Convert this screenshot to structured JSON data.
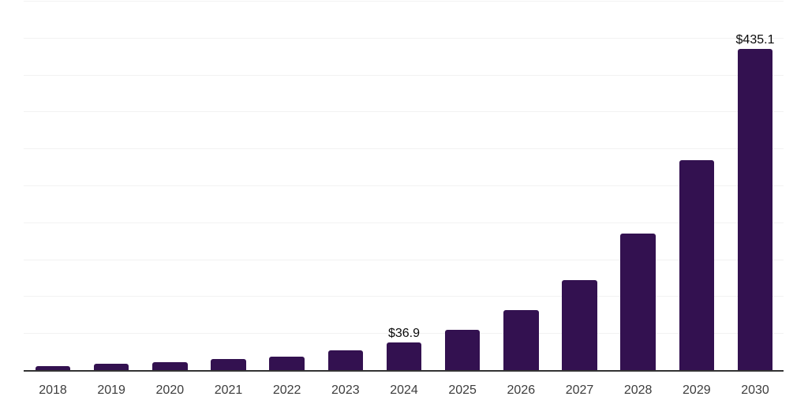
{
  "chart_data": {
    "type": "bar",
    "title": "",
    "xlabel": "",
    "ylabel": "",
    "categories": [
      "2018",
      "2019",
      "2020",
      "2021",
      "2022",
      "2023",
      "2024",
      "2025",
      "2026",
      "2027",
      "2028",
      "2029",
      "2030"
    ],
    "values": [
      5.5,
      8.5,
      10.5,
      14.5,
      18,
      26.5,
      36.9,
      54,
      81,
      122,
      185,
      284,
      435.1
    ],
    "data_labels": [
      "",
      "",
      "",
      "",
      "",
      "",
      "$36.9",
      "",
      "",
      "",
      "",
      "",
      "$435.1"
    ],
    "ylim": [
      0,
      500
    ],
    "y_gridline_step": 50,
    "grid": true,
    "legend": false,
    "y_tick_labels_visible": false,
    "colors": {
      "bar": "#331150",
      "axis": "#333333",
      "gridline": "#f2f2f2",
      "tick_label": "#3d3d3d",
      "data_label": "#0a0a0a",
      "background": "#ffffff"
    }
  }
}
